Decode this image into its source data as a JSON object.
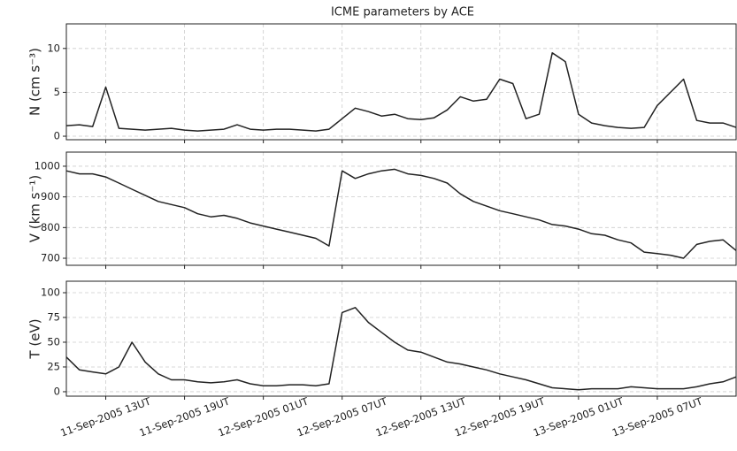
{
  "chart_data": [
    {
      "type": "line",
      "title": "ICME parameters by ACE",
      "ylabel": "N (cm s⁻³)",
      "x": [
        "2005-09-11T10",
        "2005-09-11T11",
        "2005-09-11T12",
        "2005-09-11T13",
        "2005-09-11T14",
        "2005-09-11T15",
        "2005-09-11T16",
        "2005-09-11T17",
        "2005-09-11T18",
        "2005-09-11T19",
        "2005-09-11T20",
        "2005-09-11T21",
        "2005-09-11T22",
        "2005-09-11T23",
        "2005-09-12T00",
        "2005-09-12T01",
        "2005-09-12T02",
        "2005-09-12T03",
        "2005-09-12T04",
        "2005-09-12T05",
        "2005-09-12T06",
        "2005-09-12T07",
        "2005-09-12T08",
        "2005-09-12T09",
        "2005-09-12T10",
        "2005-09-12T11",
        "2005-09-12T12",
        "2005-09-12T13",
        "2005-09-12T14",
        "2005-09-12T15",
        "2005-09-12T16",
        "2005-09-12T17",
        "2005-09-12T18",
        "2005-09-12T19",
        "2005-09-12T20",
        "2005-09-12T21",
        "2005-09-12T22",
        "2005-09-12T23",
        "2005-09-13T00",
        "2005-09-13T01",
        "2005-09-13T02",
        "2005-09-13T03",
        "2005-09-13T04",
        "2005-09-13T05",
        "2005-09-13T06",
        "2005-09-13T07",
        "2005-09-13T08",
        "2005-09-13T09",
        "2005-09-13T10",
        "2005-09-13T11",
        "2005-09-13T12",
        "2005-09-13T13"
      ],
      "values": [
        1.2,
        1.3,
        1.1,
        5.6,
        0.9,
        0.8,
        0.7,
        0.8,
        0.9,
        0.7,
        0.6,
        0.7,
        0.8,
        1.3,
        0.8,
        0.7,
        0.8,
        0.8,
        0.7,
        0.6,
        0.8,
        2.0,
        3.2,
        2.8,
        2.3,
        2.5,
        2.0,
        1.9,
        2.1,
        3.0,
        4.5,
        4.0,
        4.2,
        6.5,
        6.0,
        2.0,
        2.5,
        9.5,
        8.5,
        2.5,
        1.5,
        1.2,
        1.0,
        0.9,
        1.0,
        3.5,
        5.0,
        6.5,
        1.8,
        1.5,
        1.5,
        1.0
      ],
      "color": "#222222",
      "xlim": [
        "2005-09-11T10",
        "2005-09-13T13"
      ],
      "ylim": [
        -0.4,
        12.8
      ],
      "yticks": [
        0,
        5,
        10
      ],
      "grid": true
    },
    {
      "type": "line",
      "ylabel": "V (km s⁻¹)",
      "x": [
        "2005-09-11T10",
        "2005-09-11T11",
        "2005-09-11T12",
        "2005-09-11T13",
        "2005-09-11T14",
        "2005-09-11T15",
        "2005-09-11T16",
        "2005-09-11T17",
        "2005-09-11T18",
        "2005-09-11T19",
        "2005-09-11T20",
        "2005-09-11T21",
        "2005-09-11T22",
        "2005-09-11T23",
        "2005-09-12T00",
        "2005-09-12T01",
        "2005-09-12T02",
        "2005-09-12T03",
        "2005-09-12T04",
        "2005-09-12T05",
        "2005-09-12T06",
        "2005-09-12T07",
        "2005-09-12T08",
        "2005-09-12T09",
        "2005-09-12T10",
        "2005-09-12T11",
        "2005-09-12T12",
        "2005-09-12T13",
        "2005-09-12T14",
        "2005-09-12T15",
        "2005-09-12T16",
        "2005-09-12T17",
        "2005-09-12T18",
        "2005-09-12T19",
        "2005-09-12T20",
        "2005-09-12T21",
        "2005-09-12T22",
        "2005-09-12T23",
        "2005-09-13T00",
        "2005-09-13T01",
        "2005-09-13T02",
        "2005-09-13T03",
        "2005-09-13T04",
        "2005-09-13T05",
        "2005-09-13T06",
        "2005-09-13T07",
        "2005-09-13T08",
        "2005-09-13T09",
        "2005-09-13T10",
        "2005-09-13T11",
        "2005-09-13T12",
        "2005-09-13T13"
      ],
      "values": [
        985,
        975,
        975,
        965,
        945,
        925,
        905,
        885,
        875,
        865,
        845,
        835,
        840,
        830,
        815,
        805,
        795,
        785,
        775,
        765,
        740,
        985,
        960,
        975,
        985,
        990,
        975,
        970,
        960,
        945,
        910,
        885,
        870,
        855,
        845,
        835,
        825,
        810,
        805,
        795,
        780,
        775,
        760,
        750,
        720,
        715,
        710,
        700,
        745,
        755,
        760,
        725
      ],
      "color": "#222222",
      "xlim": [
        "2005-09-11T10",
        "2005-09-13T13"
      ],
      "ylim": [
        677,
        1046
      ],
      "yticks": [
        700,
        800,
        900,
        1000
      ],
      "grid": true
    },
    {
      "type": "line",
      "ylabel": "T (eV)",
      "x": [
        "2005-09-11T10",
        "2005-09-11T11",
        "2005-09-11T12",
        "2005-09-11T13",
        "2005-09-11T14",
        "2005-09-11T15",
        "2005-09-11T16",
        "2005-09-11T17",
        "2005-09-11T18",
        "2005-09-11T19",
        "2005-09-11T20",
        "2005-09-11T21",
        "2005-09-11T22",
        "2005-09-11T23",
        "2005-09-12T00",
        "2005-09-12T01",
        "2005-09-12T02",
        "2005-09-12T03",
        "2005-09-12T04",
        "2005-09-12T05",
        "2005-09-12T06",
        "2005-09-12T07",
        "2005-09-12T08",
        "2005-09-12T09",
        "2005-09-12T10",
        "2005-09-12T11",
        "2005-09-12T12",
        "2005-09-12T13",
        "2005-09-12T14",
        "2005-09-12T15",
        "2005-09-12T16",
        "2005-09-12T17",
        "2005-09-12T18",
        "2005-09-12T19",
        "2005-09-12T20",
        "2005-09-12T21",
        "2005-09-12T22",
        "2005-09-12T23",
        "2005-09-13T00",
        "2005-09-13T01",
        "2005-09-13T02",
        "2005-09-13T03",
        "2005-09-13T04",
        "2005-09-13T05",
        "2005-09-13T06",
        "2005-09-13T07",
        "2005-09-13T08",
        "2005-09-13T09",
        "2005-09-13T10",
        "2005-09-13T11",
        "2005-09-13T12",
        "2005-09-13T13"
      ],
      "values": [
        35,
        22,
        20,
        18,
        25,
        50,
        30,
        18,
        12,
        12,
        10,
        9,
        10,
        12,
        8,
        6,
        6,
        7,
        7,
        6,
        8,
        80,
        85,
        70,
        60,
        50,
        42,
        40,
        35,
        30,
        28,
        25,
        22,
        18,
        15,
        12,
        8,
        4,
        3,
        2,
        3,
        3,
        3,
        5,
        4,
        3,
        3,
        3,
        5,
        8,
        10,
        15
      ],
      "color": "#222222",
      "xlim": [
        "2005-09-11T10",
        "2005-09-13T13"
      ],
      "ylim": [
        -4.5,
        111.6
      ],
      "yticks": [
        0,
        25,
        50,
        75,
        100
      ],
      "grid": true,
      "xticks": [
        {
          "value": "2005-09-11T13",
          "label": "11-Sep-2005 13UT"
        },
        {
          "value": "2005-09-11T19",
          "label": "11-Sep-2005 19UT"
        },
        {
          "value": "2005-09-12T01",
          "label": "12-Sep-2005 01UT"
        },
        {
          "value": "2005-09-12T07",
          "label": "12-Sep-2005 07UT"
        },
        {
          "value": "2005-09-12T13",
          "label": "12-Sep-2005 13UT"
        },
        {
          "value": "2005-09-12T19",
          "label": "12-Sep-2005 19UT"
        },
        {
          "value": "2005-09-13T01",
          "label": "13-Sep-2005 01UT"
        },
        {
          "value": "2005-09-13T07",
          "label": "13-Sep-2005 07UT"
        }
      ]
    }
  ]
}
